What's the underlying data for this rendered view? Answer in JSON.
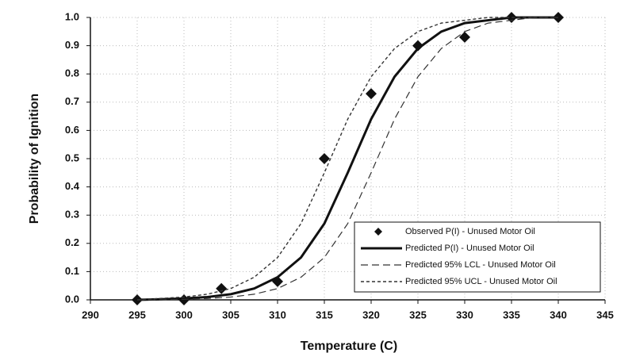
{
  "chart_data": {
    "type": "line",
    "xlabel": "Temperature (C)",
    "ylabel": "Probability of Ignition",
    "xlim": [
      290,
      345
    ],
    "xticks": [
      290,
      295,
      300,
      305,
      310,
      315,
      320,
      325,
      330,
      335,
      340,
      345
    ],
    "ylim": [
      0,
      1
    ],
    "yticks": [
      {
        "value": 0,
        "label": "0.0"
      },
      0.1,
      0.2,
      0.3,
      0.4,
      0.5,
      0.6,
      0.7,
      0.8,
      0.9,
      {
        "value": 1,
        "label": "1.0"
      }
    ],
    "grid": true,
    "legend": "lower right",
    "series": [
      {
        "name": "Observed P(I) - Unused Motor Oil",
        "color": "#111111",
        "style": "diamond",
        "x": [
          295,
          300,
          304,
          310,
          315,
          320,
          325,
          330,
          335,
          340
        ],
        "values": [
          0,
          0,
          0.04,
          0.065,
          0.5,
          0.73,
          0.9,
          0.93,
          1.0,
          1.0
        ]
      },
      {
        "name": "Predicted P(I) - Unused Motor Oil",
        "color": "#111111",
        "style": "solid",
        "x": [
          295,
          297.5,
          300,
          302.5,
          305,
          307.5,
          310,
          312.5,
          315,
          317.5,
          320,
          322.5,
          325,
          327.5,
          330,
          332.5,
          335,
          337.5,
          340
        ],
        "values": [
          0,
          0.002,
          0.005,
          0.01,
          0.02,
          0.04,
          0.08,
          0.15,
          0.27,
          0.45,
          0.64,
          0.79,
          0.89,
          0.95,
          0.98,
          0.99,
          1.0,
          1.0,
          1.0
        ]
      },
      {
        "name": "Predicted 95% LCL - Unused Motor Oil",
        "color": "#333333",
        "style": "long-dash",
        "x": [
          295,
          297.5,
          300,
          302.5,
          305,
          307.5,
          310,
          312.5,
          315,
          317.5,
          320,
          322.5,
          325,
          327.5,
          330,
          332.5,
          335,
          337.5,
          340
        ],
        "values": [
          0,
          0,
          0.002,
          0.005,
          0.01,
          0.02,
          0.04,
          0.08,
          0.15,
          0.27,
          0.45,
          0.64,
          0.79,
          0.89,
          0.95,
          0.98,
          0.99,
          1.0,
          1.0
        ]
      },
      {
        "name": "Predicted 95% UCL - Unused Motor Oil",
        "color": "#333333",
        "style": "short-dash",
        "x": [
          295,
          297.5,
          300,
          302.5,
          305,
          307.5,
          310,
          312.5,
          315,
          317.5,
          320,
          322.5,
          325,
          327.5,
          330,
          332.5,
          335,
          337.5,
          340
        ],
        "values": [
          0,
          0.005,
          0.01,
          0.02,
          0.04,
          0.08,
          0.15,
          0.27,
          0.45,
          0.64,
          0.79,
          0.89,
          0.95,
          0.98,
          0.99,
          1.0,
          1.0,
          1.0,
          1.0
        ]
      }
    ]
  }
}
